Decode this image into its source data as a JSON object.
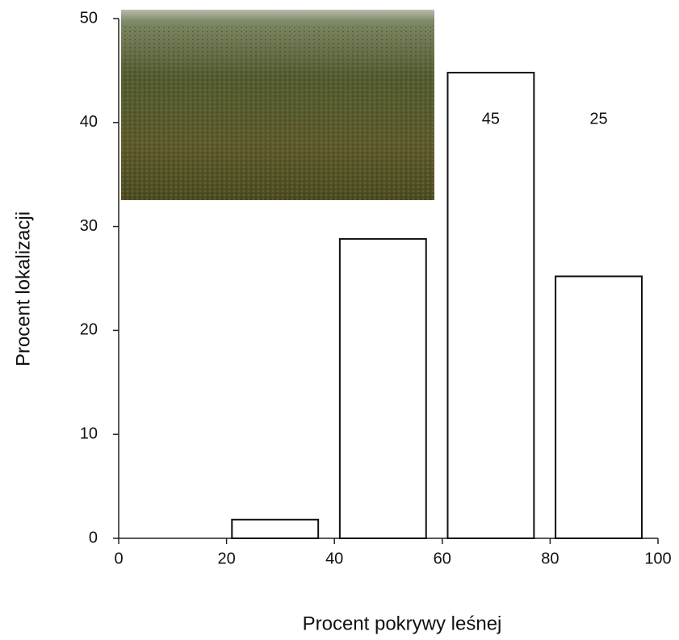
{
  "chart_data": {
    "type": "bar",
    "x_label": "Procent pokrywy leśnej",
    "y_label": "Procent lokalizacji",
    "x": [
      29,
      49,
      69,
      89
    ],
    "values": [
      1.8,
      28.8,
      44.8,
      25.2
    ],
    "value_labels": [
      null,
      null,
      "45",
      "25"
    ],
    "color": "#ffffff",
    "xlim": [
      0,
      100
    ],
    "xticks": [
      0,
      20,
      40,
      60,
      80,
      100
    ],
    "ylim": [
      0,
      50
    ],
    "yticks": [
      0,
      10,
      20,
      30,
      40,
      50
    ]
  }
}
